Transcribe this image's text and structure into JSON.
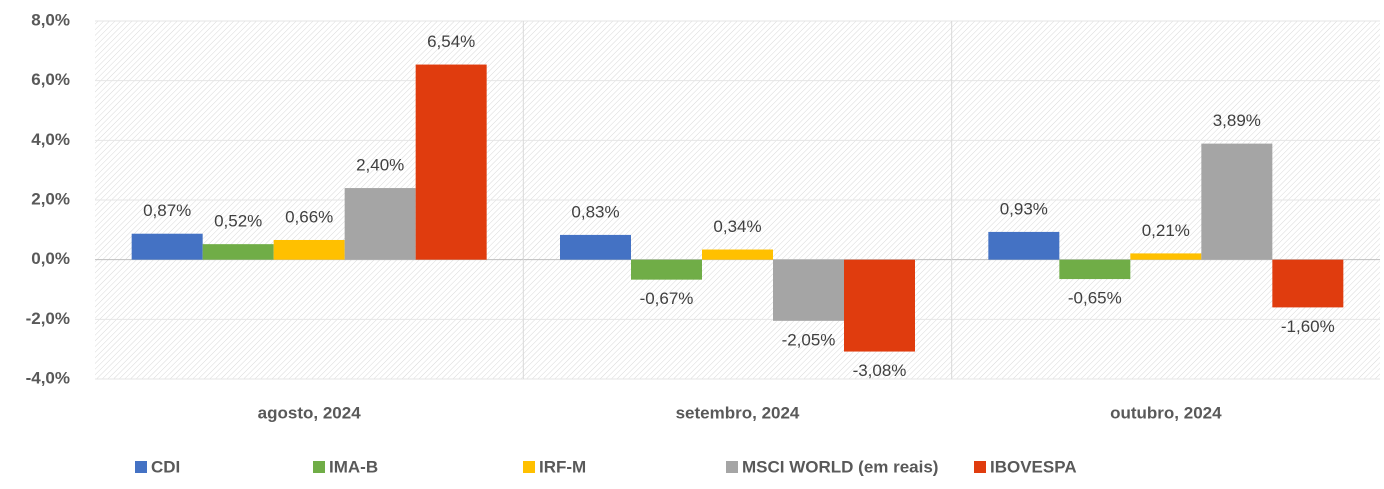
{
  "chart_data": {
    "type": "bar",
    "categories": [
      "agosto, 2024",
      "setembro, 2024",
      "outubro, 2024"
    ],
    "series": [
      {
        "name": "CDI",
        "color": "#4472c4",
        "values": [
          0.87,
          0.83,
          0.93
        ],
        "value_labels": [
          "0,87%",
          "0,83%",
          "0,93%"
        ]
      },
      {
        "name": "IMA-B",
        "color": "#70ad47",
        "values": [
          0.52,
          -0.67,
          -0.65
        ],
        "value_labels": [
          "0,52%",
          "-0,67%",
          "-0,65%"
        ]
      },
      {
        "name": "IRF-M",
        "color": "#ffc000",
        "values": [
          0.66,
          0.34,
          0.21
        ],
        "value_labels": [
          "0,66%",
          "0,34%",
          "0,21%"
        ]
      },
      {
        "name": "MSCI WORLD (em reais)",
        "color": "#a5a5a5",
        "values": [
          2.4,
          -2.05,
          3.89
        ],
        "value_labels": [
          "2,40%",
          "-2,05%",
          "3,89%"
        ]
      },
      {
        "name": "IBOVESPA",
        "color": "#e03c0e",
        "values": [
          6.54,
          -3.08,
          -1.6
        ],
        "value_labels": [
          "6,54%",
          "-3,08%",
          "-1,60%"
        ]
      }
    ],
    "ylim": [
      -4,
      8
    ],
    "yticks": [
      {
        "value": -4,
        "label": "-4,0%"
      },
      {
        "value": -2,
        "label": "-2,0%"
      },
      {
        "value": 0,
        "label": "0,0%"
      },
      {
        "value": 2,
        "label": "2,0%"
      },
      {
        "value": 4,
        "label": "4,0%"
      },
      {
        "value": 6,
        "label": "6,0%"
      },
      {
        "value": 8,
        "label": "8,0%"
      }
    ],
    "grid": true,
    "legend": "bottom"
  }
}
